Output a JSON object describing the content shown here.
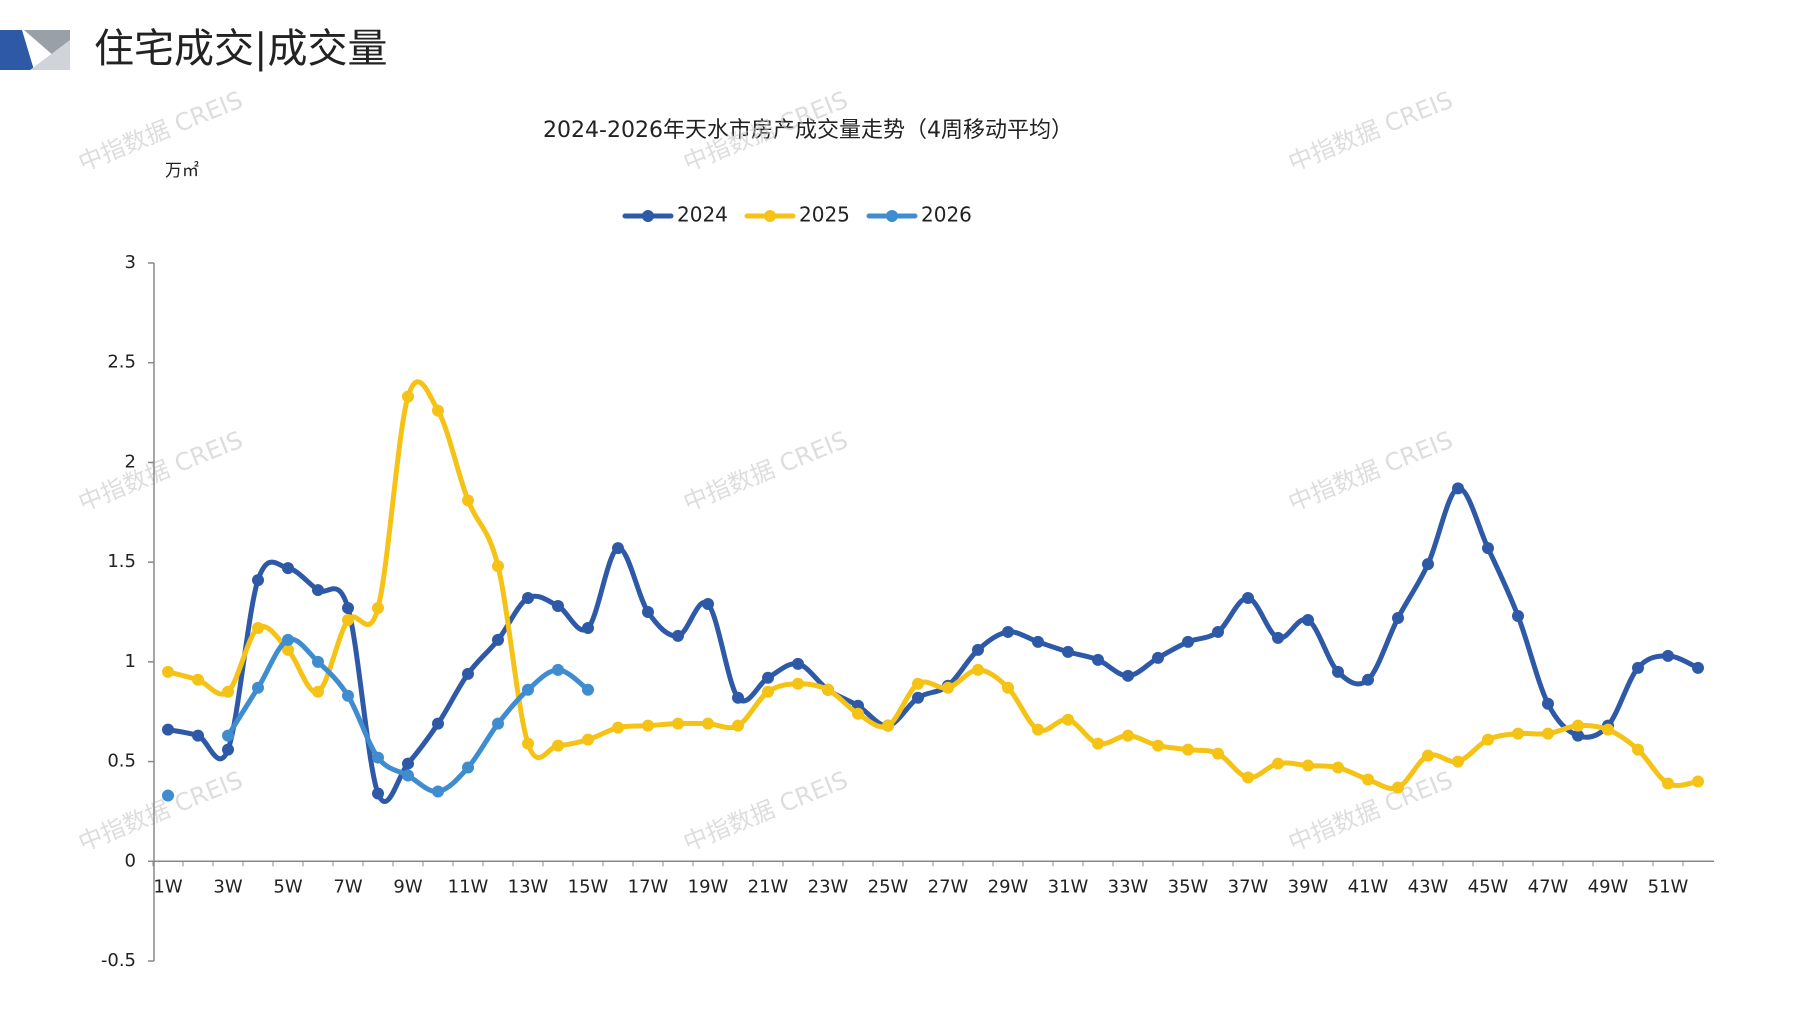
{
  "header": {
    "title": "住宅成交|成交量"
  },
  "watermark": "中指数据 CREIS",
  "chart_data": {
    "type": "line",
    "title": "2024-2026年天水市房产成交量走势（4周移动平均）",
    "y_unit": "万㎡",
    "categories": [
      "1W",
      null,
      "3W",
      null,
      "5W",
      null,
      "7W",
      null,
      "9W",
      null,
      "11W",
      null,
      "13W",
      null,
      "15W",
      null,
      "17W",
      null,
      "19W",
      null,
      "21W",
      null,
      "23W",
      null,
      "25W",
      null,
      "27W",
      null,
      "29W",
      null,
      "31W",
      null,
      "33W",
      null,
      "35W",
      null,
      "37W",
      null,
      "39W",
      null,
      "41W",
      null,
      "43W",
      null,
      "45W",
      null,
      "47W",
      null,
      "49W",
      null,
      "51W",
      null
    ],
    "ylim": [
      -0.5,
      3
    ],
    "yticks": [
      -0.5,
      0,
      0.5,
      1,
      1.5,
      2,
      2.5,
      3
    ],
    "legend": "top",
    "series": [
      {
        "name": "2024",
        "color": "#2e59a7",
        "values": [
          0.66,
          0.63,
          0.56,
          1.41,
          1.47,
          1.36,
          1.27,
          0.34,
          0.49,
          0.69,
          0.94,
          1.11,
          1.32,
          1.28,
          1.17,
          1.57,
          1.25,
          1.13,
          1.29,
          0.82,
          0.92,
          0.99,
          0.86,
          0.78,
          0.68,
          0.82,
          0.88,
          1.06,
          1.15,
          1.1,
          1.05,
          1.01,
          0.93,
          1.02,
          1.1,
          1.15,
          1.32,
          1.12,
          1.21,
          0.95,
          0.91,
          1.22,
          1.49,
          1.87,
          1.57,
          1.23,
          0.79,
          0.63,
          0.68,
          0.97,
          1.03,
          0.97
        ]
      },
      {
        "name": "2025",
        "color": "#f5c216",
        "values": [
          0.95,
          0.91,
          0.85,
          1.17,
          1.06,
          0.85,
          1.21,
          1.27,
          2.33,
          2.26,
          1.81,
          1.48,
          0.59,
          0.58,
          0.61,
          0.67,
          0.68,
          0.69,
          0.69,
          0.68,
          0.85,
          0.89,
          0.86,
          0.74,
          0.68,
          0.89,
          0.87,
          0.96,
          0.87,
          0.66,
          0.71,
          0.59,
          0.63,
          0.58,
          0.56,
          0.54,
          0.42,
          0.49,
          0.48,
          0.47,
          0.41,
          0.37,
          0.53,
          0.5,
          0.61,
          0.64,
          0.64,
          0.68,
          0.66,
          0.56,
          0.39,
          0.4
        ]
      },
      {
        "name": "2026",
        "color": "#3f8ccf",
        "values": [
          0.33,
          null,
          0.63,
          0.87,
          1.11,
          1.0,
          0.83,
          0.52,
          0.43,
          0.35,
          0.47,
          0.69,
          0.86,
          0.96,
          0.86,
          null,
          null,
          null,
          null,
          null,
          null,
          null,
          null,
          null,
          null,
          null,
          null,
          null,
          null,
          null,
          null,
          null,
          null,
          null,
          null,
          null,
          null,
          null,
          null,
          null,
          null,
          null,
          null,
          null,
          null,
          null,
          null,
          null,
          null,
          null,
          null,
          null
        ]
      }
    ]
  }
}
